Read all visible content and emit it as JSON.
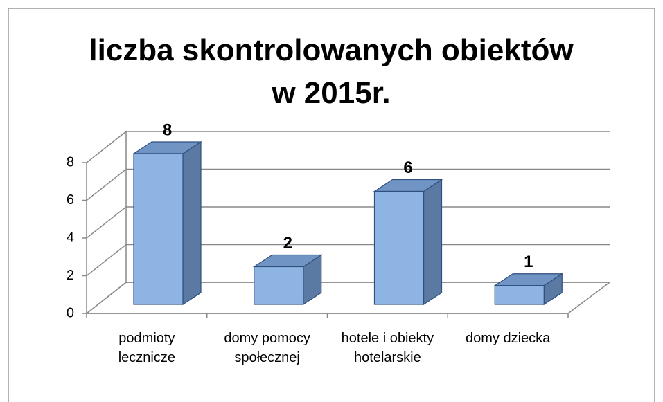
{
  "chart_data": {
    "type": "bar3d",
    "title": "liczba skontrolowanych obiektów w 2015r.",
    "categories": [
      "podmioty lecznicze",
      "domy pomocy społecznej",
      "hotele i obiekty hotelarskie",
      "domy dziecka"
    ],
    "values": [
      8,
      2,
      6,
      1
    ],
    "color": "#8db4e2",
    "ylim": [
      0,
      8
    ],
    "yticks": [
      0,
      2,
      4,
      6,
      8
    ],
    "grid": true
  }
}
